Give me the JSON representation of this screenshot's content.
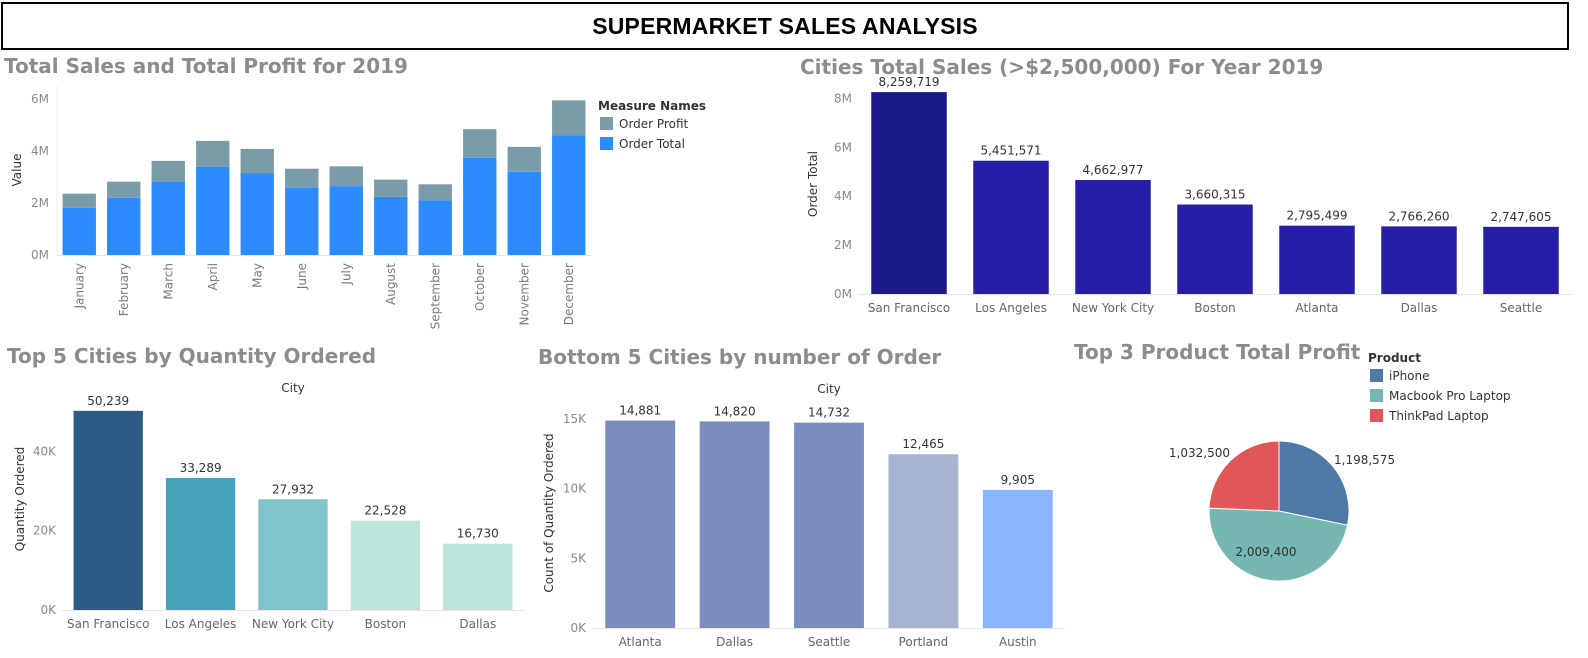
{
  "dashboard": {
    "title": "SUPERMARKET SALES ANALYSIS"
  },
  "chart_data": [
    {
      "id": "monthly",
      "type": "bar",
      "stacked": true,
      "title": "Total Sales and Total Profit for 2019",
      "ylabel": "Value",
      "xlabel": "",
      "ylim": [
        0,
        6500000
      ],
      "yticks": [
        0,
        2000000,
        4000000,
        6000000
      ],
      "ytick_labels": [
        "0M",
        "2M",
        "4M",
        "6M"
      ],
      "categories": [
        "January",
        "February",
        "March",
        "April",
        "May",
        "June",
        "July",
        "August",
        "September",
        "October",
        "November",
        "December"
      ],
      "series": [
        {
          "name": "Order Total",
          "color": "#2c8cff",
          "values": [
            1820000,
            2200000,
            2810000,
            3390000,
            3150000,
            2580000,
            2650000,
            2240000,
            2100000,
            3740000,
            3200000,
            4610000
          ]
        },
        {
          "name": "Order Profit",
          "color": "#7a9ca8",
          "values": [
            540000,
            620000,
            810000,
            1000000,
            930000,
            740000,
            760000,
            660000,
            620000,
            1100000,
            960000,
            1340000
          ]
        }
      ],
      "legend": {
        "title": "Measure Names",
        "position": "right",
        "items": [
          "Order Profit",
          "Order Total"
        ]
      },
      "grid": false
    },
    {
      "id": "cities",
      "type": "bar",
      "title": "Cities Total Sales (>$2,500,000) For Year 2019",
      "ylabel": "Order Total",
      "xlabel": "",
      "ylim": [
        0,
        9000000
      ],
      "yticks": [
        0,
        2000000,
        4000000,
        6000000,
        8000000
      ],
      "ytick_labels": [
        "0M",
        "2M",
        "4M",
        "6M",
        "8M"
      ],
      "categories": [
        "San Francisco",
        "Los Angeles",
        "New York City",
        "Boston",
        "Atlanta",
        "Dallas",
        "Seattle"
      ],
      "values": [
        8259719,
        5451571,
        4662977,
        3660315,
        2795499,
        2766260,
        2747605
      ],
      "value_labels": [
        "8,259,719",
        "5,451,571",
        "4,662,977",
        "3,660,315",
        "2,795,499",
        "2,766,260",
        "2,747,605"
      ],
      "colors": [
        "#1c1a8a",
        "#261ea6",
        "#261ea6",
        "#261ea6",
        "#261ea6",
        "#261ea6",
        "#261ea6"
      ],
      "grid": false
    },
    {
      "id": "top5",
      "type": "bar",
      "title": "Top 5 Cities by Quantity Ordered",
      "header": "City",
      "ylabel": "Quantity Ordered",
      "xlabel": "",
      "ylim": [
        0,
        56000
      ],
      "yticks": [
        0,
        20000,
        40000
      ],
      "ytick_labels": [
        "0K",
        "20K",
        "40K"
      ],
      "categories": [
        "San Francisco",
        "Los Angeles",
        "New York City",
        "Boston",
        "Dallas"
      ],
      "values": [
        50239,
        33289,
        27932,
        22528,
        16730
      ],
      "value_labels": [
        "50,239",
        "33,289",
        "27,932",
        "22,528",
        "16,730"
      ],
      "colors": [
        "#2c5c86",
        "#46a2bb",
        "#80c4cb",
        "#bbe4da",
        "#bbe4da"
      ],
      "grid": false
    },
    {
      "id": "bottom5",
      "type": "bar",
      "title": "Bottom 5 Cities by number of Order",
      "header": "City",
      "ylabel": "Count of Quantity Ordered",
      "xlabel": "",
      "ylim": [
        0,
        16500
      ],
      "yticks": [
        0,
        5000,
        10000,
        15000
      ],
      "ytick_labels": [
        "0K",
        "5K",
        "10K",
        "15K"
      ],
      "categories": [
        "Atlanta",
        "Dallas",
        "Seattle",
        "Portland",
        "Austin"
      ],
      "values": [
        14881,
        14820,
        14732,
        12465,
        9905
      ],
      "value_labels": [
        "14,881",
        "14,820",
        "14,732",
        "12,465",
        "9,905"
      ],
      "colors": [
        "#7a8dbd",
        "#7a8dbd",
        "#7a8dbd",
        "#a6b4d1",
        "#8ab4fc"
      ],
      "grid": false
    },
    {
      "id": "pie",
      "type": "pie",
      "title": "Top 3 Product Total Profit",
      "legend": {
        "title": "Product",
        "position": "top-right"
      },
      "series": [
        {
          "name": "iPhone",
          "value": 1198575,
          "label": "1,198,575",
          "color": "#4e79a7"
        },
        {
          "name": "Macbook Pro Laptop",
          "value": 2009400,
          "label": "2,009,400",
          "color": "#76b7b2"
        },
        {
          "name": "ThinkPad Laptop",
          "value": 1032500,
          "label": "1,032,500",
          "color": "#e15759"
        }
      ]
    }
  ]
}
